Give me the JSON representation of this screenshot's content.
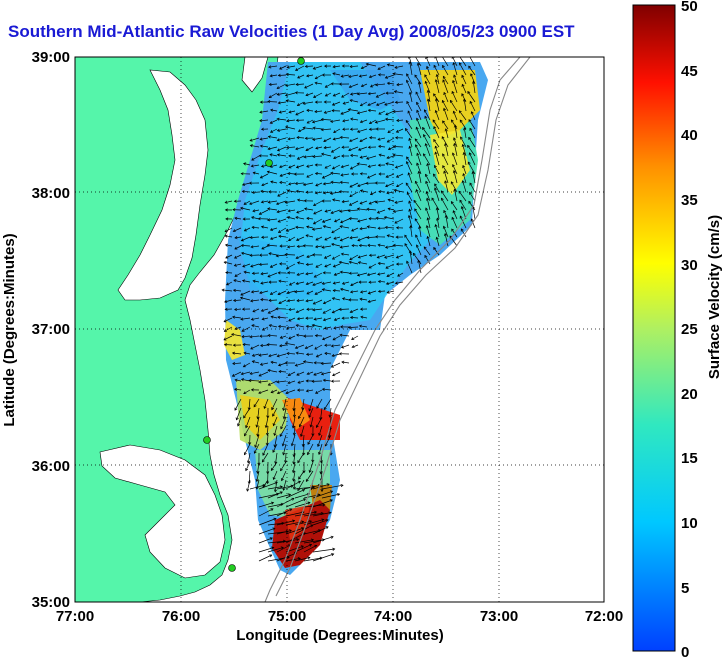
{
  "title": "Southern Mid-Atlantic Raw Velocities (1 Day Avg) 2008/05/23 0900 EST",
  "map": {
    "xlabel": "Longitude (Degrees:Minutes)",
    "ylabel": "Latitude (Degrees:Minutes)",
    "x_ticks": [
      "77:00",
      "76:00",
      "75:00",
      "74:00",
      "73:00",
      "72:00"
    ],
    "y_ticks": [
      "39:00",
      "38:00",
      "37:00",
      "36:00",
      "35:00"
    ]
  },
  "colorbar": {
    "label": "Surface Velocity (cm/s)",
    "ticks": [
      "50",
      "45",
      "40",
      "35",
      "30",
      "25",
      "20",
      "15",
      "10",
      "5",
      "0"
    ],
    "range": [
      0,
      50
    ]
  },
  "colors": {
    "land": "#55f5aa",
    "title": "#1a1ad4",
    "station": "#22cc22"
  }
}
